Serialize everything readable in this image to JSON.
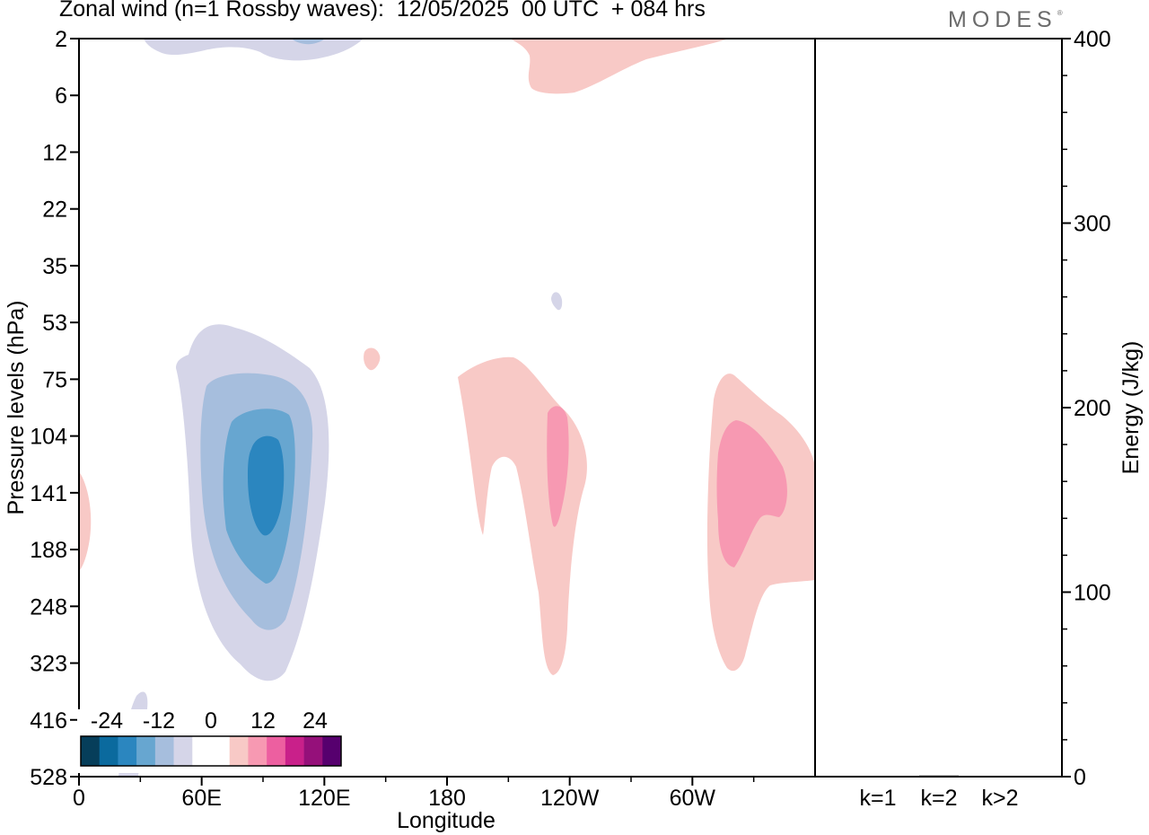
{
  "header": {
    "title": "Zonal wind (n=1 Rossby waves):  12/05/2025  00 UTC  + 084 hrs",
    "brand": "MODES"
  },
  "chart_data": [
    {
      "type": "heatmap",
      "title": "Zonal wind (n=1 Rossby waves):  12/05/2025  00 UTC  + 084 hrs",
      "xlabel": "Longitude",
      "ylabel": "Pressure levels (hPa)",
      "x_ticks": [
        "0",
        "60E",
        "120E",
        "180",
        "120W",
        "60W"
      ],
      "x_tick_degrees": [
        0,
        60,
        120,
        180,
        240,
        300
      ],
      "x_range_degrees": [
        0,
        360
      ],
      "y_ticks": [
        "2",
        "6",
        "12",
        "22",
        "35",
        "53",
        "75",
        "104",
        "141",
        "188",
        "248",
        "323",
        "416",
        "528"
      ],
      "y_axis": "levels, top to bottom",
      "colorbar": {
        "tick_labels": [
          "-24",
          "-12",
          "0",
          "12",
          "24"
        ],
        "colors": [
          "#063e5a",
          "#0b6a9e",
          "#2b86bf",
          "#67a6d0",
          "#a6bedd",
          "#d5d5e8",
          "#ffffff",
          "#ffffff",
          "#f8c9c6",
          "#f799b2",
          "#ed5fa0",
          "#c9208a",
          "#95107a",
          "#56006e"
        ]
      },
      "features": [
        {
          "sign": "negative",
          "lon": 90,
          "level": "141",
          "min": -18
        },
        {
          "sign": "negative",
          "lon": 50,
          "level": "2",
          "min": -6
        },
        {
          "sign": "negative",
          "lon": 28,
          "level": "416",
          "min": -3
        },
        {
          "sign": "positive",
          "lon": 233,
          "level": "141",
          "max": 9
        },
        {
          "sign": "positive",
          "lon": 320,
          "level": "141",
          "max": 9
        },
        {
          "sign": "positive",
          "lon": 240,
          "level": "2",
          "max": 3
        },
        {
          "sign": "positive",
          "lon": 3,
          "level": "188",
          "max": 3
        }
      ],
      "grid": false,
      "legend": "colorbar bottom-left"
    },
    {
      "type": "bar",
      "ylabel": "Energy (J/kg)",
      "categories": [
        "k=1",
        "k=2",
        "k>2"
      ],
      "values": [
        0.3,
        0.6,
        0.3
      ],
      "ylim": [
        0,
        400
      ],
      "y_ticks": [
        0,
        100,
        200,
        300,
        400
      ],
      "bar_color": "#000000"
    }
  ]
}
